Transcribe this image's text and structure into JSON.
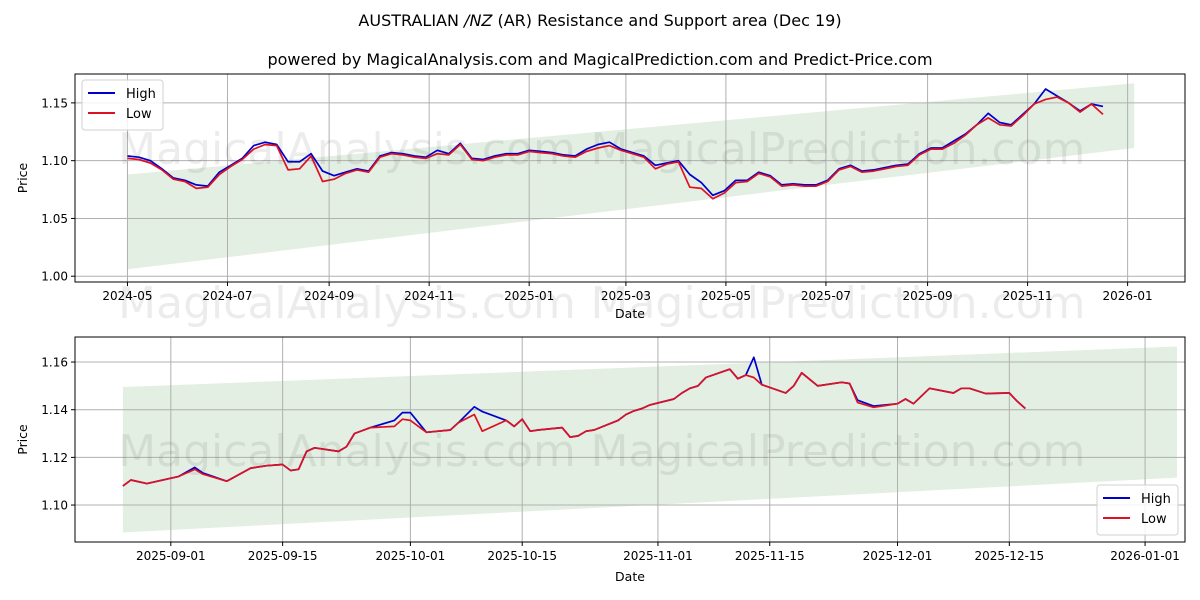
{
  "title": "AUSTRALIAN /NZ (AR) Resistance and Support area (Dec 19)",
  "title_parts": {
    "pre": "AUSTRALIAN ",
    "italic": "/NZ",
    "post": " (AR) Resistance and Support area (Dec 19)"
  },
  "subtitle": "powered by MagicalAnalysis.com and MagicalPrediction.com and Predict-Price.com",
  "watermarks": [
    "MagicalAnalysis.com",
    "MagicalPrediction.com"
  ],
  "colors": {
    "high": "#0000cc",
    "low": "#dd1122",
    "band": "#e3efe3",
    "grid": "#b0b0b0"
  },
  "chart_data": [
    {
      "type": "line",
      "title": "AUSTRALIAN /NZ (AR) Resistance and Support area (Dec 19)",
      "xlabel": "Date",
      "ylabel": "Price",
      "ylim": [
        0.995,
        1.175
      ],
      "xlim": [
        "2024-03-30",
        "2026-02-05"
      ],
      "grid": true,
      "legend_position": "upper left",
      "legend": [
        "High",
        "Low"
      ],
      "xticks": [
        "2024-05",
        "2024-07",
        "2024-09",
        "2024-11",
        "2025-01",
        "2025-03",
        "2025-05",
        "2025-07",
        "2025-09",
        "2025-11",
        "2026-01"
      ],
      "yticks": [
        "1.00",
        "1.05",
        "1.10",
        "1.15"
      ],
      "band": {
        "x": [
          "2024-05-01",
          "2026-01-05"
        ],
        "upper": [
          1.088,
          1.167
        ],
        "lower": [
          1.006,
          1.111
        ]
      },
      "x": [
        "2024-05-01",
        "2024-05-08",
        "2024-05-15",
        "2024-05-22",
        "2024-05-29",
        "2024-06-05",
        "2024-06-12",
        "2024-06-19",
        "2024-06-26",
        "2024-07-03",
        "2024-07-10",
        "2024-07-17",
        "2024-07-24",
        "2024-07-31",
        "2024-08-07",
        "2024-08-14",
        "2024-08-21",
        "2024-08-28",
        "2024-09-04",
        "2024-09-11",
        "2024-09-18",
        "2024-09-25",
        "2024-10-02",
        "2024-10-09",
        "2024-10-16",
        "2024-10-23",
        "2024-10-30",
        "2024-11-06",
        "2024-11-13",
        "2024-11-20",
        "2024-11-27",
        "2024-12-04",
        "2024-12-11",
        "2024-12-18",
        "2024-12-25",
        "2025-01-01",
        "2025-01-08",
        "2025-01-15",
        "2025-01-22",
        "2025-01-29",
        "2025-02-05",
        "2025-02-12",
        "2025-02-19",
        "2025-02-26",
        "2025-03-05",
        "2025-03-12",
        "2025-03-19",
        "2025-03-26",
        "2025-04-02",
        "2025-04-09",
        "2025-04-16",
        "2025-04-23",
        "2025-04-30",
        "2025-05-07",
        "2025-05-14",
        "2025-05-21",
        "2025-05-28",
        "2025-06-04",
        "2025-06-11",
        "2025-06-18",
        "2025-06-25",
        "2025-07-02",
        "2025-07-09",
        "2025-07-16",
        "2025-07-23",
        "2025-07-30",
        "2025-08-06",
        "2025-08-13",
        "2025-08-20",
        "2025-08-27",
        "2025-09-03",
        "2025-09-10",
        "2025-09-17",
        "2025-09-24",
        "2025-10-01",
        "2025-10-08",
        "2025-10-15",
        "2025-10-22",
        "2025-10-29",
        "2025-11-05",
        "2025-11-12",
        "2025-11-19",
        "2025-11-26",
        "2025-12-03",
        "2025-12-10",
        "2025-12-17"
      ],
      "series": [
        {
          "name": "High",
          "values": [
            1.104,
            1.103,
            1.1,
            1.093,
            1.085,
            1.083,
            1.079,
            1.078,
            1.09,
            1.096,
            1.102,
            1.113,
            1.116,
            1.114,
            1.099,
            1.099,
            1.106,
            1.091,
            1.087,
            1.09,
            1.093,
            1.091,
            1.104,
            1.107,
            1.106,
            1.104,
            1.103,
            1.109,
            1.106,
            1.115,
            1.102,
            1.101,
            1.104,
            1.106,
            1.106,
            1.109,
            1.108,
            1.107,
            1.105,
            1.104,
            1.11,
            1.114,
            1.116,
            1.11,
            1.107,
            1.104,
            1.096,
            1.098,
            1.1,
            1.088,
            1.081,
            1.07,
            1.074,
            1.083,
            1.083,
            1.09,
            1.087,
            1.079,
            1.08,
            1.079,
            1.079,
            1.083,
            1.093,
            1.096,
            1.091,
            1.092,
            1.094,
            1.096,
            1.097,
            1.106,
            1.111,
            1.111,
            1.117,
            1.123,
            1.131,
            1.141,
            1.133,
            1.131,
            1.14,
            1.149,
            1.162,
            1.156,
            1.15,
            1.143,
            1.149,
            1.147
          ]
        },
        {
          "name": "Low",
          "values": [
            1.102,
            1.101,
            1.098,
            1.092,
            1.084,
            1.082,
            1.076,
            1.077,
            1.088,
            1.095,
            1.101,
            1.11,
            1.114,
            1.113,
            1.092,
            1.093,
            1.104,
            1.082,
            1.084,
            1.089,
            1.092,
            1.09,
            1.103,
            1.106,
            1.105,
            1.103,
            1.102,
            1.106,
            1.105,
            1.114,
            1.101,
            1.1,
            1.103,
            1.105,
            1.105,
            1.108,
            1.107,
            1.106,
            1.104,
            1.103,
            1.108,
            1.111,
            1.113,
            1.109,
            1.106,
            1.103,
            1.093,
            1.097,
            1.099,
            1.077,
            1.076,
            1.067,
            1.072,
            1.081,
            1.082,
            1.089,
            1.086,
            1.078,
            1.079,
            1.078,
            1.078,
            1.082,
            1.092,
            1.095,
            1.09,
            1.091,
            1.093,
            1.095,
            1.096,
            1.105,
            1.11,
            1.11,
            1.115,
            1.122,
            1.131,
            1.137,
            1.131,
            1.13,
            1.139,
            1.149,
            1.153,
            1.155,
            1.15,
            1.142,
            1.149,
            1.14
          ]
        }
      ]
    },
    {
      "type": "line",
      "xlabel": "Date",
      "ylabel": "Price",
      "ylim": [
        1.0845,
        1.1705
      ],
      "xlim": [
        "2025-08-20",
        "2026-01-06"
      ],
      "grid": true,
      "legend_position": "lower right",
      "legend": [
        "High",
        "Low"
      ],
      "xticks": [
        "2025-09-01",
        "2025-09-15",
        "2025-10-01",
        "2025-10-15",
        "2025-11-01",
        "2025-11-15",
        "2025-12-01",
        "2025-12-15",
        "2026-01-01"
      ],
      "yticks": [
        "1.10",
        "1.12",
        "1.14",
        "1.16"
      ],
      "band": {
        "x": [
          "2025-08-26",
          "2026-01-05"
        ],
        "upper": [
          1.1495,
          1.1665
        ],
        "lower": [
          1.0885,
          1.1115
        ]
      },
      "x": [
        "2025-08-26",
        "2025-08-27",
        "2025-08-29",
        "2025-09-02",
        "2025-09-04",
        "2025-09-05",
        "2025-09-08",
        "2025-09-11",
        "2025-09-13",
        "2025-09-15",
        "2025-09-16",
        "2025-09-17",
        "2025-09-18",
        "2025-09-19",
        "2025-09-22",
        "2025-09-23",
        "2025-09-24",
        "2025-09-26",
        "2025-09-29",
        "2025-09-30",
        "2025-10-01",
        "2025-10-03",
        "2025-10-06",
        "2025-10-07",
        "2025-10-09",
        "2025-10-10",
        "2025-10-13",
        "2025-10-14",
        "2025-10-15",
        "2025-10-16",
        "2025-10-17",
        "2025-10-20",
        "2025-10-21",
        "2025-10-22",
        "2025-10-23",
        "2025-10-24",
        "2025-10-27",
        "2025-10-28",
        "2025-10-29",
        "2025-10-30",
        "2025-10-31",
        "2025-11-03",
        "2025-11-04",
        "2025-11-05",
        "2025-11-06",
        "2025-11-07",
        "2025-11-10",
        "2025-11-11",
        "2025-11-12",
        "2025-11-13",
        "2025-11-14",
        "2025-11-17",
        "2025-11-18",
        "2025-11-19",
        "2025-11-21",
        "2025-11-24",
        "2025-11-25",
        "2025-11-26",
        "2025-11-28",
        "2025-12-01",
        "2025-12-02",
        "2025-12-03",
        "2025-12-05",
        "2025-12-08",
        "2025-12-09",
        "2025-12-10",
        "2025-12-12",
        "2025-12-15",
        "2025-12-16",
        "2025-12-17"
      ],
      "series": [
        {
          "name": "High",
          "values": [
            1.108,
            1.1105,
            1.109,
            1.112,
            1.1158,
            1.1135,
            1.11,
            1.1155,
            1.1165,
            1.117,
            1.1145,
            1.115,
            1.1225,
            1.124,
            1.1225,
            1.1245,
            1.13,
            1.1325,
            1.1355,
            1.1388,
            1.1388,
            1.1305,
            1.1315,
            1.1345,
            1.1412,
            1.1392,
            1.1355,
            1.133,
            1.136,
            1.131,
            1.1315,
            1.1325,
            1.1285,
            1.129,
            1.131,
            1.1315,
            1.1355,
            1.138,
            1.1395,
            1.1405,
            1.142,
            1.1445,
            1.147,
            1.149,
            1.15,
            1.1535,
            1.157,
            1.153,
            1.1545,
            1.162,
            1.1505,
            1.147,
            1.15,
            1.1555,
            1.15,
            1.1515,
            1.151,
            1.144,
            1.1415,
            1.1425,
            1.1445,
            1.1425,
            1.149,
            1.147,
            1.149,
            1.149,
            1.1468,
            1.147,
            1.1435,
            1.1405
          ]
        },
        {
          "name": "Low",
          "values": [
            1.108,
            1.1105,
            1.109,
            1.112,
            1.115,
            1.113,
            1.11,
            1.1155,
            1.1165,
            1.117,
            1.1145,
            1.115,
            1.1225,
            1.124,
            1.1225,
            1.1245,
            1.13,
            1.1325,
            1.133,
            1.136,
            1.1355,
            1.1305,
            1.1315,
            1.1345,
            1.138,
            1.131,
            1.1355,
            1.133,
            1.136,
            1.131,
            1.1315,
            1.1325,
            1.1285,
            1.129,
            1.131,
            1.1315,
            1.1355,
            1.138,
            1.1395,
            1.1405,
            1.142,
            1.1445,
            1.147,
            1.149,
            1.15,
            1.1535,
            1.157,
            1.153,
            1.1545,
            1.1535,
            1.1505,
            1.147,
            1.15,
            1.1555,
            1.15,
            1.1515,
            1.151,
            1.143,
            1.141,
            1.1425,
            1.1445,
            1.1425,
            1.149,
            1.147,
            1.149,
            1.149,
            1.1468,
            1.147,
            1.1435,
            1.1405
          ]
        }
      ]
    }
  ]
}
